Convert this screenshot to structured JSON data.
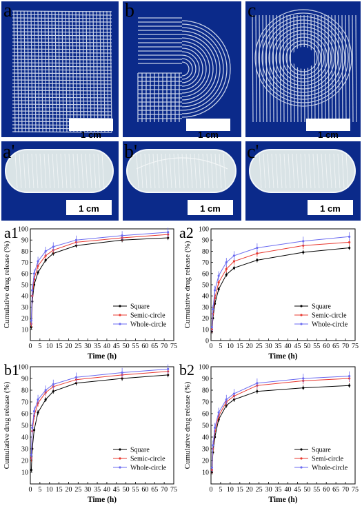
{
  "photos": {
    "top_row": [
      {
        "label": "a",
        "scale": "1 cm",
        "pattern": "square-grid"
      },
      {
        "label": "b",
        "scale": "1 cm",
        "pattern": "semi-circle"
      },
      {
        "label": "c",
        "scale": "1 cm",
        "pattern": "whole-circle"
      }
    ],
    "capsule_row": [
      {
        "label": "a'",
        "scale": "1 cm"
      },
      {
        "label": "b'",
        "scale": "1 cm"
      },
      {
        "label": "c'",
        "scale": "1 cm"
      }
    ],
    "colors": {
      "background": "#0b2a8a",
      "strand": "#e8eef7",
      "capsule": "#d9e3e6"
    }
  },
  "chart_data": [
    {
      "panel": "a1",
      "type": "line",
      "xlabel": "Time (h)",
      "ylabel": "Cumulative drug release (%)",
      "xlim": [
        0,
        75
      ],
      "ylim": [
        0,
        100
      ],
      "xticks": [
        0,
        5,
        10,
        15,
        20,
        25,
        30,
        35,
        40,
        45,
        50,
        55,
        60,
        65,
        70,
        75
      ],
      "yticks": [
        10,
        20,
        30,
        40,
        50,
        60,
        70,
        80,
        90,
        100
      ],
      "legend_position": "lower-right",
      "series": [
        {
          "name": "Square",
          "color": "#000000",
          "x": [
            0.5,
            1,
            2,
            4,
            8,
            12,
            24,
            48,
            72
          ],
          "y": [
            12,
            35,
            50,
            61,
            72,
            78,
            85,
            90,
            92
          ]
        },
        {
          "name": "Semic-circle",
          "color": "#e8382f",
          "x": [
            0.5,
            1,
            2,
            4,
            8,
            12,
            24,
            48,
            72
          ],
          "y": [
            15,
            40,
            55,
            67,
            76,
            81,
            88,
            92,
            95
          ]
        },
        {
          "name": "Whole-circle",
          "color": "#6a6af0",
          "x": [
            0.5,
            1,
            2,
            4,
            8,
            12,
            24,
            48,
            72
          ],
          "y": [
            18,
            45,
            60,
            71,
            80,
            84,
            90,
            94,
            97
          ]
        }
      ]
    },
    {
      "panel": "a2",
      "type": "line",
      "xlabel": "Time (h)",
      "ylabel": "Cumulative drug release (%)",
      "xlim": [
        0,
        75
      ],
      "ylim": [
        0,
        100
      ],
      "xticks": [
        0,
        5,
        10,
        15,
        20,
        25,
        30,
        35,
        40,
        45,
        50,
        55,
        60,
        65,
        70,
        75
      ],
      "yticks": [
        0,
        10,
        20,
        30,
        40,
        50,
        60,
        70,
        80,
        90,
        100
      ],
      "legend_position": "lower-right",
      "series": [
        {
          "name": "Square",
          "color": "#000000",
          "x": [
            0.5,
            1,
            2,
            4,
            8,
            12,
            24,
            48,
            72
          ],
          "y": [
            8,
            20,
            33,
            46,
            59,
            65,
            72,
            79,
            83
          ]
        },
        {
          "name": "Semic-circle",
          "color": "#e8382f",
          "x": [
            0.5,
            1,
            2,
            4,
            8,
            12,
            24,
            48,
            72
          ],
          "y": [
            10,
            24,
            38,
            52,
            64,
            71,
            78,
            85,
            88
          ]
        },
        {
          "name": "Whole-circle",
          "color": "#6a6af0",
          "x": [
            0.5,
            1,
            2,
            4,
            8,
            12,
            24,
            48,
            72
          ],
          "y": [
            12,
            28,
            45,
            58,
            70,
            76,
            83,
            89,
            93
          ]
        }
      ]
    },
    {
      "panel": "b1",
      "type": "line",
      "xlabel": "Time (h)",
      "ylabel": "Cumulative drug release (%)",
      "xlim": [
        0,
        75
      ],
      "ylim": [
        0,
        100
      ],
      "xticks": [
        0,
        5,
        10,
        15,
        20,
        25,
        30,
        35,
        40,
        45,
        50,
        55,
        60,
        65,
        70,
        75
      ],
      "yticks": [
        10,
        20,
        30,
        40,
        50,
        60,
        70,
        80,
        90,
        100
      ],
      "legend_position": "lower-right",
      "series": [
        {
          "name": "Square",
          "color": "#000000",
          "x": [
            0.5,
            1,
            2,
            4,
            8,
            12,
            24,
            48,
            72
          ],
          "y": [
            12,
            30,
            46,
            61,
            72,
            79,
            86,
            90,
            93
          ]
        },
        {
          "name": "Semic-circle",
          "color": "#e8382f",
          "x": [
            0.5,
            1,
            2,
            4,
            8,
            12,
            24,
            48,
            72
          ],
          "y": [
            22,
            45,
            58,
            69,
            78,
            83,
            89,
            93,
            96
          ]
        },
        {
          "name": "Whole-circle",
          "color": "#6a6af0",
          "x": [
            0.5,
            1,
            2,
            4,
            8,
            12,
            24,
            48,
            72
          ],
          "y": [
            25,
            48,
            62,
            72,
            80,
            85,
            91,
            95,
            98
          ]
        }
      ]
    },
    {
      "panel": "b2",
      "type": "line",
      "xlabel": "Time (h)",
      "ylabel": "Cumulative drug release (%)",
      "xlim": [
        0,
        75
      ],
      "ylim": [
        0,
        100
      ],
      "xticks": [
        0,
        5,
        10,
        15,
        20,
        25,
        30,
        35,
        40,
        45,
        50,
        55,
        60,
        65,
        70,
        75
      ],
      "yticks": [
        10,
        20,
        30,
        40,
        50,
        60,
        70,
        80,
        90,
        100
      ],
      "legend_position": "lower-right",
      "series": [
        {
          "name": "Square",
          "color": "#000000",
          "x": [
            0.5,
            1,
            2,
            4,
            8,
            12,
            24,
            48,
            72
          ],
          "y": [
            10,
            27,
            40,
            55,
            67,
            72,
            79,
            82,
            84
          ]
        },
        {
          "name": "Semi-circle",
          "color": "#e8382f",
          "x": [
            0.5,
            1,
            2,
            4,
            8,
            12,
            24,
            48,
            72
          ],
          "y": [
            12,
            30,
            45,
            58,
            70,
            75,
            84,
            88,
            90
          ]
        },
        {
          "name": "Whole-circle",
          "color": "#6a6af0",
          "x": [
            0.5,
            1,
            2,
            4,
            8,
            12,
            24,
            48,
            72
          ],
          "y": [
            14,
            33,
            48,
            61,
            72,
            77,
            86,
            90,
            92
          ]
        }
      ]
    }
  ]
}
